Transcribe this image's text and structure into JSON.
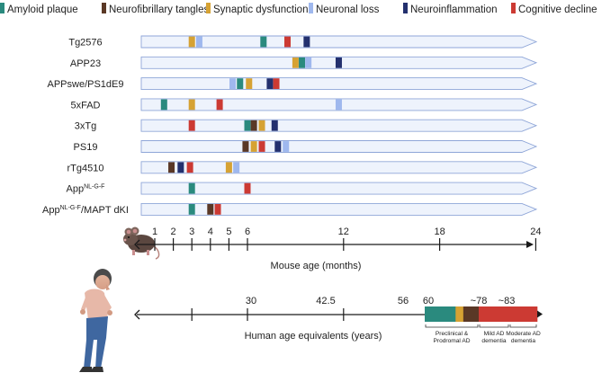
{
  "legend": [
    {
      "label": "Amyloid plaque",
      "color": "#2a8a7e"
    },
    {
      "label": "Neurofibrillary tangles",
      "color": "#5a3826"
    },
    {
      "label": "Synaptic dysfunction",
      "color": "#d6a233"
    },
    {
      "label": "Neuronal loss",
      "color": "#9fb8ee"
    },
    {
      "label": "Neuroinflammation",
      "color": "#23306e"
    },
    {
      "label": "Cognitive decline",
      "color": "#cc3a33"
    }
  ],
  "models": [
    {
      "label": "Tg2576",
      "markers": [
        {
          "age": 3,
          "type": 2
        },
        {
          "age": 3.4,
          "type": 3
        },
        {
          "age": 7,
          "type": 0
        },
        {
          "age": 8.5,
          "type": 5
        },
        {
          "age": 9.7,
          "type": 4
        }
      ]
    },
    {
      "label": "APP23",
      "markers": [
        {
          "age": 9,
          "type": 2
        },
        {
          "age": 9.4,
          "type": 0
        },
        {
          "age": 9.8,
          "type": 3
        },
        {
          "age": 11.7,
          "type": 4
        }
      ]
    },
    {
      "label": "APPswe/PS1dE9",
      "markers": [
        {
          "age": 5.2,
          "type": 3
        },
        {
          "age": 5.6,
          "type": 0
        },
        {
          "age": 6.1,
          "type": 2
        },
        {
          "age": 7.4,
          "type": 4
        },
        {
          "age": 7.8,
          "type": 5
        }
      ]
    },
    {
      "label": "5xFAD",
      "markers": [
        {
          "age": 1.5,
          "type": 0
        },
        {
          "age": 3,
          "type": 2
        },
        {
          "age": 4.5,
          "type": 5
        },
        {
          "age": 11.7,
          "type": 3
        }
      ]
    },
    {
      "label": "3xTg",
      "markers": [
        {
          "age": 3,
          "type": 5
        },
        {
          "age": 6,
          "type": 0
        },
        {
          "age": 6.4,
          "type": 1
        },
        {
          "age": 6.9,
          "type": 2
        },
        {
          "age": 7.7,
          "type": 4
        }
      ]
    },
    {
      "label": "PS19",
      "markers": [
        {
          "age": 5.9,
          "type": 1
        },
        {
          "age": 6.4,
          "type": 2
        },
        {
          "age": 6.9,
          "type": 5
        },
        {
          "age": 7.9,
          "type": 4
        },
        {
          "age": 8.4,
          "type": 3
        }
      ]
    },
    {
      "label": "rTg4510",
      "markers": [
        {
          "age": 1.9,
          "type": 1
        },
        {
          "age": 2.4,
          "type": 4
        },
        {
          "age": 2.9,
          "type": 5
        },
        {
          "age": 5,
          "type": 2
        },
        {
          "age": 5.4,
          "type": 3
        }
      ]
    },
    {
      "label": "App",
      "label_sup": "NL-G-F",
      "label_suffix": "",
      "markers": [
        {
          "age": 3,
          "type": 0
        },
        {
          "age": 6,
          "type": 5
        }
      ]
    },
    {
      "label": "App",
      "label_sup": "NL-G-F",
      "label_suffix": "/MAPT dKI",
      "markers": [
        {
          "age": 3,
          "type": 0
        },
        {
          "age": 4,
          "type": 1
        },
        {
          "age": 4.4,
          "type": 5
        }
      ]
    }
  ],
  "mouse_axis": {
    "ticks": [
      "1",
      "2",
      "3",
      "4",
      "5",
      "6",
      "12",
      "18",
      "24"
    ],
    "tick_values": [
      1,
      2,
      3,
      4,
      5,
      6,
      12,
      18,
      24
    ],
    "title": "Mouse age (months)"
  },
  "human_axis": {
    "tick_values": [
      3,
      6,
      12,
      18
    ],
    "labels": [
      "30",
      "42.5",
      "56",
      "60",
      "~78",
      "~83"
    ],
    "title": "Human age equivalents (years)",
    "stages": [
      {
        "label_lines": [
          "Preclinical &",
          "Prodromal AD"
        ],
        "segments": [
          {
            "type": 0,
            "weight": 4
          },
          {
            "type": 2,
            "weight": 1
          },
          {
            "type": 1,
            "weight": 2
          }
        ]
      },
      {
        "label_lines": [
          "Mild AD",
          "dementia"
        ],
        "segments": [
          {
            "type": 5,
            "weight": 4
          }
        ]
      },
      {
        "label_lines": [
          "Moderate AD",
          "dementia"
        ],
        "segments": [
          {
            "type": 5,
            "weight": 3
          }
        ]
      }
    ]
  },
  "icons": [
    "mouse-icon",
    "human-icon"
  ]
}
